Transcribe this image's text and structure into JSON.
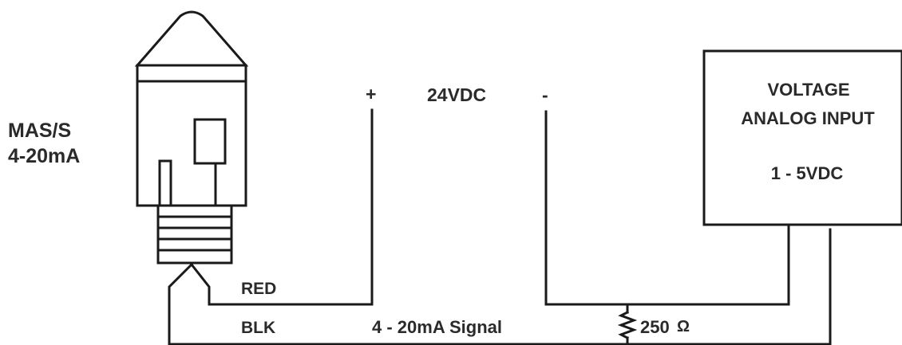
{
  "sensor": {
    "name": "MAS/S",
    "range": "4-20mA"
  },
  "power_supply": {
    "positive": "+",
    "label": "24VDC",
    "negative": "-"
  },
  "analog_input": {
    "line1": "VOLTAGE",
    "line2": "ANALOG INPUT",
    "range": "1 - 5VDC"
  },
  "wires": {
    "red": "RED",
    "blk": "BLK",
    "signal": "4 - 20mA Signal"
  },
  "resistor": {
    "value": "250",
    "unit": "Ω"
  },
  "colors": {
    "line": "#1a1a1a",
    "text": "#2a2a2a",
    "background": "#ffffff"
  }
}
